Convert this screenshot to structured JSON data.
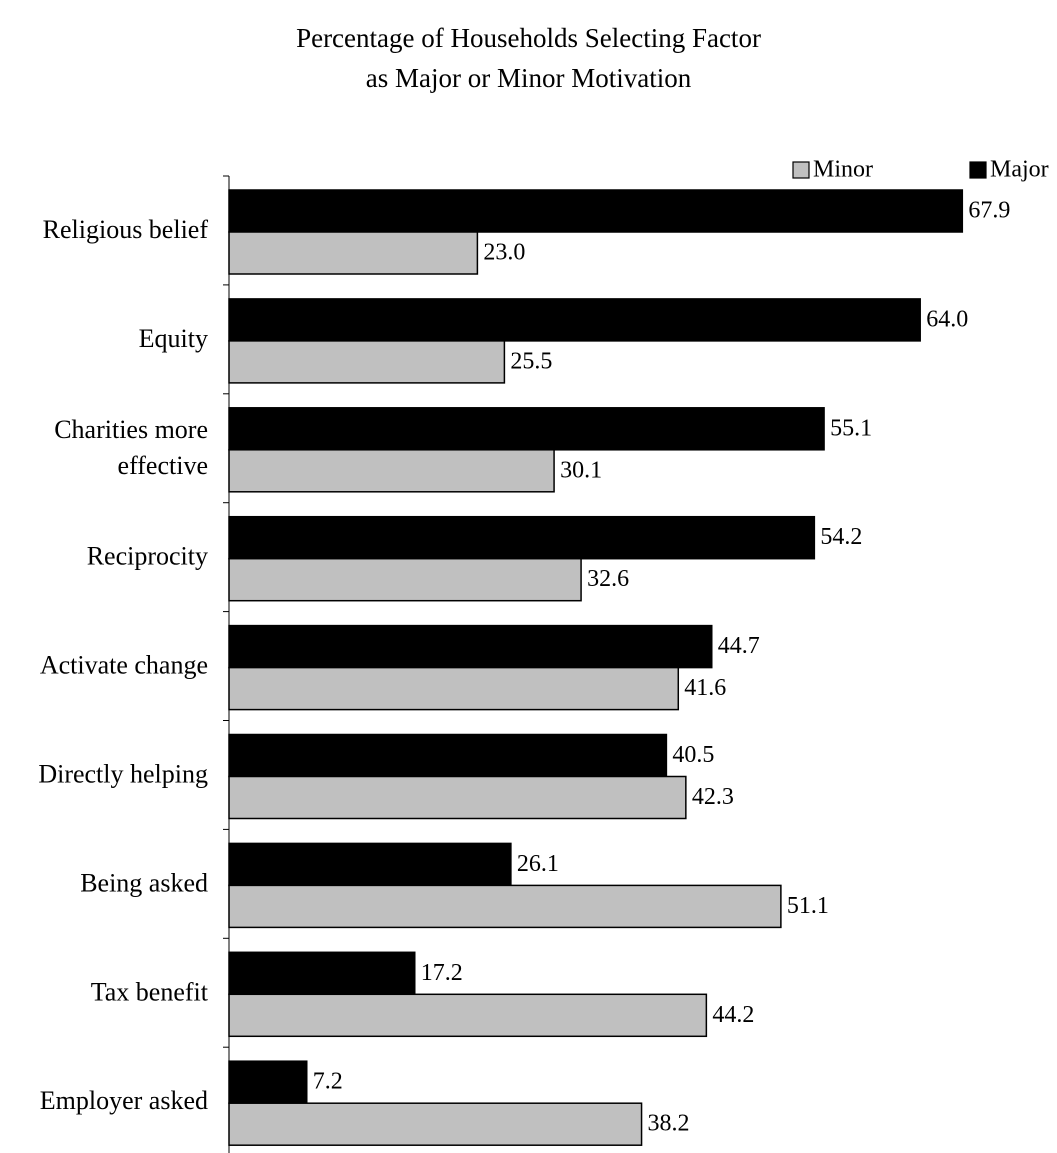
{
  "chart_data": {
    "type": "bar",
    "orientation": "horizontal",
    "title_lines": [
      "Percentage of Households Selecting Factor",
      "as Major or Minor Motivation"
    ],
    "categories": [
      [
        "Religious belief"
      ],
      [
        "Equity"
      ],
      [
        "Charities more",
        "effective"
      ],
      [
        "Reciprocity"
      ],
      [
        "Activate change"
      ],
      [
        "Directly helping"
      ],
      [
        "Being asked"
      ],
      [
        "Tax benefit"
      ],
      [
        "Employer asked"
      ]
    ],
    "series": [
      {
        "name": "Major",
        "color": "#000000",
        "values": [
          67.9,
          64.0,
          55.1,
          54.2,
          44.7,
          40.5,
          26.1,
          17.2,
          7.2
        ],
        "labels": [
          "67.9",
          "64.0",
          "55.1",
          "54.2",
          "44.7",
          "40.5",
          "26.1",
          "17.2",
          "7.2"
        ]
      },
      {
        "name": "Minor",
        "color": "#c0c0c0",
        "values": [
          23.0,
          25.5,
          30.1,
          32.6,
          41.6,
          42.3,
          51.1,
          44.2,
          38.2
        ],
        "labels": [
          "23.0",
          "25.5",
          "30.1",
          "32.6",
          "41.6",
          "42.3",
          "51.1",
          "44.2",
          "38.2"
        ]
      }
    ],
    "legend": {
      "position": "top-right",
      "order": [
        "Minor",
        "Major"
      ]
    },
    "xlim": [
      0,
      75
    ],
    "grid": false,
    "x_axis_visible": false
  }
}
